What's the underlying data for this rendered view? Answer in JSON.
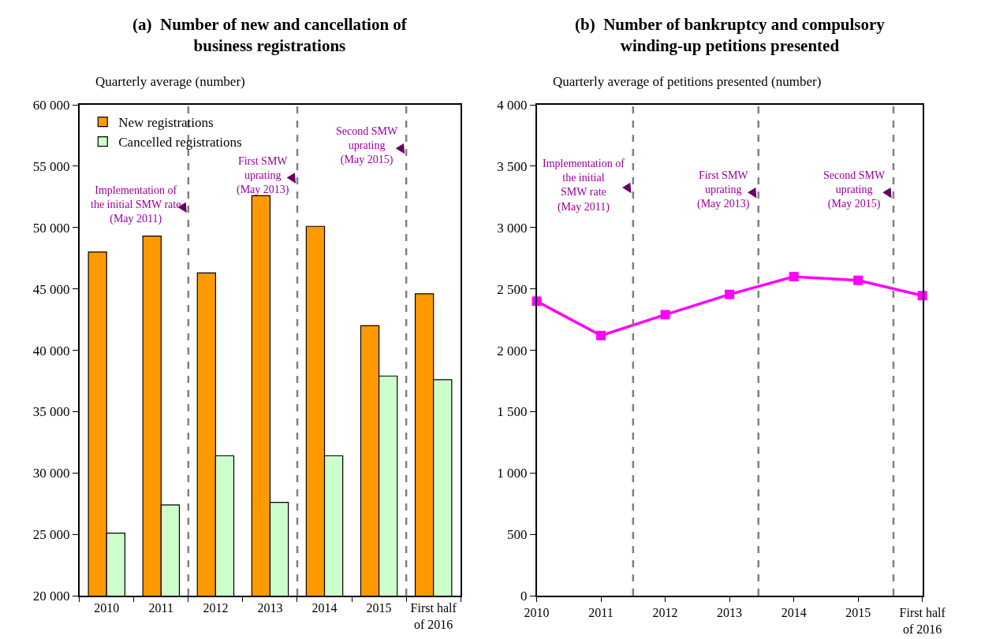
{
  "chart_data": [
    {
      "type": "bar",
      "title": "(a)  Number of new and cancellation of\nbusiness registrations",
      "ylabel": "Quarterly average (number)",
      "categories": [
        "2010",
        "2011",
        "2012",
        "2013",
        "2014",
        "2015",
        "First half\nof 2016"
      ],
      "series": [
        {
          "name": "New registrations",
          "color": "#ff9900",
          "values": [
            48000,
            49300,
            46300,
            52600,
            50100,
            42000,
            44600
          ]
        },
        {
          "name": "Cancelled registrations",
          "color": "#ccffcc",
          "values": [
            25100,
            27400,
            31400,
            27600,
            31400,
            37900,
            37600
          ]
        }
      ],
      "ylim": [
        20000,
        60000
      ],
      "yticks": [
        {
          "value": 20000,
          "label": "20 000"
        },
        {
          "value": 25000,
          "label": "25 000"
        },
        {
          "value": 30000,
          "label": "30 000"
        },
        {
          "value": 35000,
          "label": "35 000"
        },
        {
          "value": 40000,
          "label": "40 000"
        },
        {
          "value": 45000,
          "label": "45 000"
        },
        {
          "value": 50000,
          "label": "50 000"
        },
        {
          "value": 55000,
          "label": "55 000"
        },
        {
          "value": 60000,
          "label": "60 000"
        }
      ],
      "annotations": [
        "Implementation of\nthe initial SMW rate\n(May 2011)",
        "First SMW\nuprating\n(May 2013)",
        "Second SMW\nuprating\n(May 2015)"
      ],
      "legend": "top left"
    },
    {
      "type": "line",
      "title": "(b)  Number of bankruptcy and compulsory\nwinding-up petitions presented",
      "ylabel": "Quarterly average of petitions presented (number)",
      "categories": [
        "2010",
        "2011",
        "2012",
        "2013",
        "2014",
        "2015",
        "First half\nof 2016"
      ],
      "series": [
        {
          "color": "#ff00ff",
          "values": [
            2400,
            2120,
            2290,
            2455,
            2600,
            2570,
            2445
          ]
        }
      ],
      "ylim": [
        0,
        4000
      ],
      "yticks": [
        0,
        500,
        {
          "value": 1000,
          "label": "1 000"
        },
        {
          "value": 1500,
          "label": "1 500"
        },
        {
          "value": 2000,
          "label": "2 000"
        },
        {
          "value": 2500,
          "label": "2 500"
        },
        {
          "value": 3000,
          "label": "3 000"
        },
        {
          "value": 3500,
          "label": "3 500"
        },
        {
          "value": 4000,
          "label": "4 000"
        }
      ],
      "annotations": [
        "Implementation of\nthe initial\nSMW rate\n(May 2011)",
        "First SMW\nuprating\n(May 2013)",
        "Second SMW\nuprating\n(May 2015)"
      ],
      "marker": "square",
      "line_style": "solid",
      "legend": false
    }
  ]
}
